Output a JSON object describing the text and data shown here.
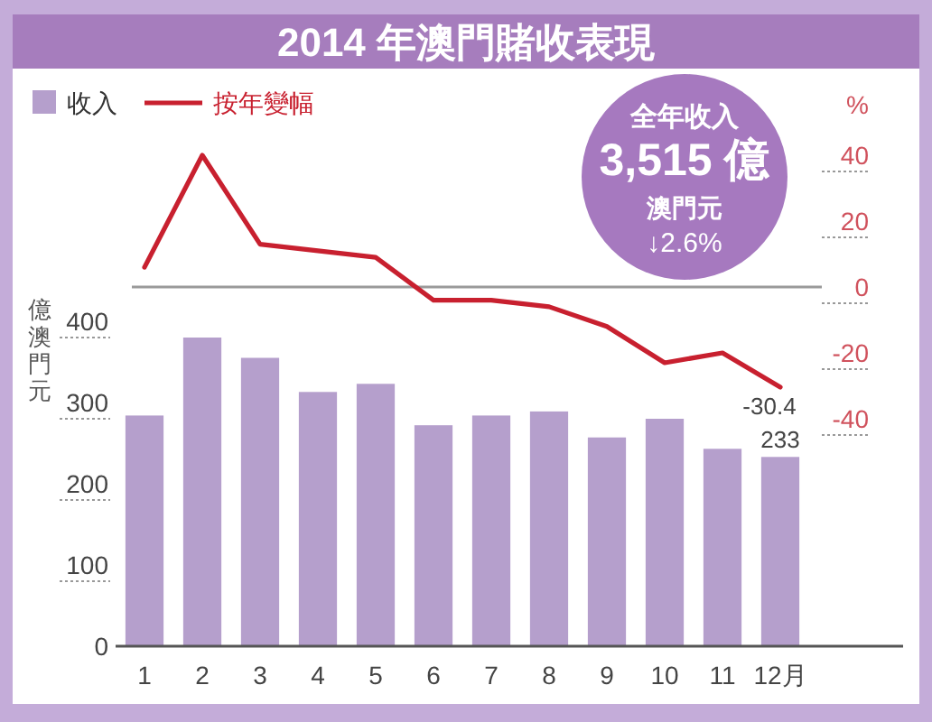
{
  "chart_data": {
    "type": "bar",
    "title": "2014 年澳門賭收表現",
    "categories": [
      "1",
      "2",
      "3",
      "4",
      "5",
      "6",
      "7",
      "8",
      "9",
      "10",
      "11",
      "12月"
    ],
    "ylabel": "億澳門元",
    "y2label": "%",
    "series": [
      {
        "name": "收入",
        "color": "#b59fcc",
        "values": [
          284,
          380,
          355,
          313,
          323,
          272,
          284,
          289,
          257,
          280,
          243,
          233
        ],
        "value_labels": [
          null,
          null,
          null,
          null,
          null,
          null,
          null,
          null,
          null,
          null,
          null,
          "233"
        ]
      },
      {
        "name": "按年變幅",
        "type": "line",
        "axis": "y2",
        "color": "#c8202f",
        "values": [
          6,
          40,
          13,
          11,
          9,
          -4,
          -4,
          -6,
          -12,
          -23,
          -20,
          -30.4
        ],
        "value_labels": [
          null,
          null,
          null,
          null,
          null,
          null,
          null,
          null,
          null,
          null,
          null,
          "-30.4"
        ]
      }
    ],
    "ylim": [
      0,
      400
    ],
    "yticks": [
      0,
      100,
      200,
      300,
      400
    ],
    "y2lim": [
      -40,
      40
    ],
    "y2ticks": [
      -40,
      -20,
      0,
      20,
      40
    ],
    "ref_lines": [
      {
        "axis": "y2",
        "value": 0,
        "color": "#9a9a9a"
      }
    ],
    "legend": "top left",
    "annotations": [
      "全年收入",
      "3,515 億",
      "澳門元",
      "↓2.6%"
    ]
  }
}
